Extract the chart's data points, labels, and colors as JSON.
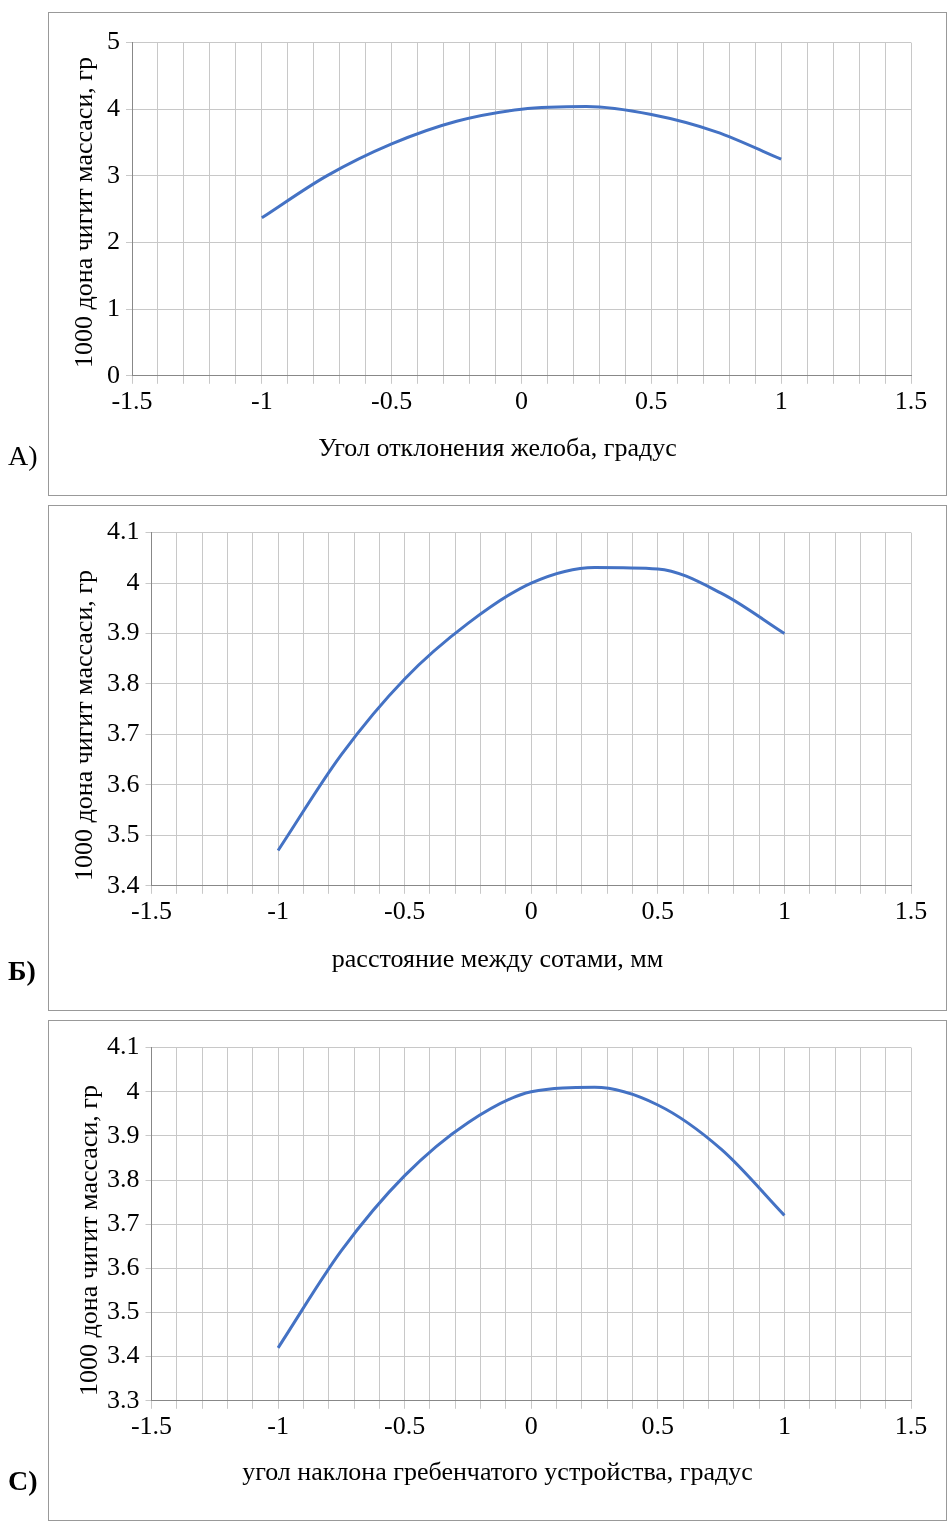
{
  "chart_data": [
    {
      "type": "line",
      "xlabel": "Угол отклонения желоба, градус",
      "ylabel": "1000 дона чигит массаси, гр",
      "annotations": [
        "А)"
      ],
      "x": [
        -1,
        -0.75,
        -0.5,
        -0.25,
        0,
        0.25,
        0.5,
        0.75,
        1
      ],
      "series": [
        {
          "color": "#4472c4",
          "values": [
            2.37,
            3.0,
            3.48,
            3.82,
            4.0,
            4.04,
            3.92,
            3.66,
            3.25
          ]
        }
      ],
      "xlim": [
        -1.5,
        1.5
      ],
      "xticks": [
        -1.5,
        {
          "value": -1.4,
          "label": null
        },
        {
          "value": -1.3,
          "label": null
        },
        {
          "value": -1.2,
          "label": null
        },
        {
          "value": -1.1,
          "label": null
        },
        -1,
        {
          "value": -0.9,
          "label": null
        },
        {
          "value": -0.8,
          "label": null
        },
        {
          "value": -0.7,
          "label": null
        },
        {
          "value": -0.6,
          "label": null
        },
        -0.5,
        {
          "value": -0.4,
          "label": null
        },
        {
          "value": -0.3,
          "label": null
        },
        {
          "value": -0.2,
          "label": null
        },
        {
          "value": -0.1,
          "label": null
        },
        0,
        {
          "value": 0.1,
          "label": null
        },
        {
          "value": 0.2,
          "label": null
        },
        {
          "value": 0.3,
          "label": null
        },
        {
          "value": 0.4,
          "label": null
        },
        0.5,
        {
          "value": 0.6,
          "label": null
        },
        {
          "value": 0.7,
          "label": null
        },
        {
          "value": 0.8,
          "label": null
        },
        {
          "value": 0.9,
          "label": null
        },
        1,
        {
          "value": 1.1,
          "label": null
        },
        {
          "value": 1.2,
          "label": null
        },
        {
          "value": 1.3,
          "label": null
        },
        {
          "value": 1.4,
          "label": null
        },
        1.5
      ],
      "ylim": [
        0,
        5
      ],
      "yticks": [
        0,
        1,
        2,
        3,
        4,
        5
      ],
      "grid": true,
      "legend": false
    },
    {
      "type": "line",
      "xlabel": "расстояние между сотами, мм",
      "ylabel": "1000 дона чигит массаси, гр",
      "annotations": [
        "Б)"
      ],
      "x": [
        -1,
        -0.75,
        -0.5,
        -0.25,
        0,
        0.25,
        0.5,
        0.75,
        1
      ],
      "series": [
        {
          "color": "#4472c4",
          "values": [
            3.47,
            3.66,
            3.81,
            3.92,
            4.0,
            4.031,
            4.028,
            3.98,
            3.9
          ]
        }
      ],
      "xlim": [
        -1.5,
        1.5
      ],
      "xticks": [
        -1.5,
        {
          "value": -1.4,
          "label": null
        },
        {
          "value": -1.3,
          "label": null
        },
        {
          "value": -1.2,
          "label": null
        },
        {
          "value": -1.1,
          "label": null
        },
        -1,
        {
          "value": -0.9,
          "label": null
        },
        {
          "value": -0.8,
          "label": null
        },
        {
          "value": -0.7,
          "label": null
        },
        {
          "value": -0.6,
          "label": null
        },
        -0.5,
        {
          "value": -0.4,
          "label": null
        },
        {
          "value": -0.3,
          "label": null
        },
        {
          "value": -0.2,
          "label": null
        },
        {
          "value": -0.1,
          "label": null
        },
        0,
        {
          "value": 0.1,
          "label": null
        },
        {
          "value": 0.2,
          "label": null
        },
        {
          "value": 0.3,
          "label": null
        },
        {
          "value": 0.4,
          "label": null
        },
        0.5,
        {
          "value": 0.6,
          "label": null
        },
        {
          "value": 0.7,
          "label": null
        },
        {
          "value": 0.8,
          "label": null
        },
        {
          "value": 0.9,
          "label": null
        },
        1,
        {
          "value": 1.1,
          "label": null
        },
        {
          "value": 1.2,
          "label": null
        },
        {
          "value": 1.3,
          "label": null
        },
        {
          "value": 1.4,
          "label": null
        },
        1.5
      ],
      "ylim": [
        3.4,
        4.1
      ],
      "yticks": [
        3.4,
        3.5,
        3.6,
        3.7,
        3.8,
        3.9,
        4,
        4.1
      ],
      "grid": true,
      "legend": false
    },
    {
      "type": "line",
      "xlabel": "угол наклона гребенчатого устройства, градус",
      "ylabel": "1000 дона чигит массаси, гр",
      "annotations": [
        "С)"
      ],
      "x": [
        -1,
        -0.75,
        -0.5,
        -0.25,
        0,
        0.25,
        0.5,
        0.75,
        1
      ],
      "series": [
        {
          "color": "#4472c4",
          "values": [
            3.42,
            3.64,
            3.81,
            3.93,
            4.0,
            4.01,
            3.97,
            3.87,
            3.72
          ]
        }
      ],
      "xlim": [
        -1.5,
        1.5
      ],
      "xticks": [
        -1.5,
        {
          "value": -1.4,
          "label": null
        },
        {
          "value": -1.3,
          "label": null
        },
        {
          "value": -1.2,
          "label": null
        },
        {
          "value": -1.1,
          "label": null
        },
        -1,
        {
          "value": -0.9,
          "label": null
        },
        {
          "value": -0.8,
          "label": null
        },
        {
          "value": -0.7,
          "label": null
        },
        {
          "value": -0.6,
          "label": null
        },
        -0.5,
        {
          "value": -0.4,
          "label": null
        },
        {
          "value": -0.3,
          "label": null
        },
        {
          "value": -0.2,
          "label": null
        },
        {
          "value": -0.1,
          "label": null
        },
        0,
        {
          "value": 0.1,
          "label": null
        },
        {
          "value": 0.2,
          "label": null
        },
        {
          "value": 0.3,
          "label": null
        },
        {
          "value": 0.4,
          "label": null
        },
        0.5,
        {
          "value": 0.6,
          "label": null
        },
        {
          "value": 0.7,
          "label": null
        },
        {
          "value": 0.8,
          "label": null
        },
        {
          "value": 0.9,
          "label": null
        },
        1,
        {
          "value": 1.1,
          "label": null
        },
        {
          "value": 1.2,
          "label": null
        },
        {
          "value": 1.3,
          "label": null
        },
        {
          "value": 1.4,
          "label": null
        },
        1.5
      ],
      "ylim": [
        3.3,
        4.1
      ],
      "yticks": [
        3.3,
        3.4,
        3.5,
        3.6,
        3.7,
        3.8,
        3.9,
        4,
        4.1
      ],
      "grid": true,
      "legend": false
    }
  ]
}
